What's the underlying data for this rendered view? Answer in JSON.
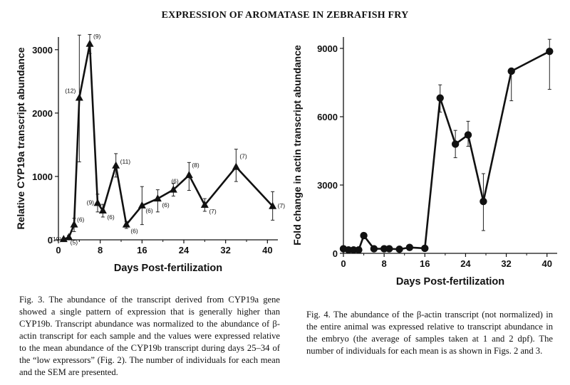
{
  "page": {
    "title": "EXPRESSION OF AROMATASE IN ZEBRAFISH FRY"
  },
  "captions": {
    "fig3": {
      "label": "Fig. 3.",
      "text": "The abundance of the transcript derived from CYP19a gene showed a single pattern of expression that is generally higher than CYP19b. Transcript abundance was normalized to the abundance of β-actin transcript for each sample and the values were expressed relative to the mean abundance of the CYP19b transcript during days 25–34 of the “low expressors” (Fig. 2). The number of individuals for each mean and the SEM are presented."
    },
    "fig4": {
      "label": "Fig. 4.",
      "text": "The abundance of the β-actin transcript (not normalized) in the entire animal was expressed relative to transcript abundance in the embryo (the average of samples taken at 1 and 2 dpf). The number of individuals for each mean is as shown in Figs. 2 and 3."
    }
  },
  "chart_data": [
    {
      "type": "line",
      "marker": "triangle",
      "xlabel": "Days Post-fertilization",
      "ylabel": "Relative CYP19a transcript abundance",
      "xlim": [
        0,
        42
      ],
      "ylim": [
        0,
        3200
      ],
      "xticks": [
        0,
        8,
        16,
        24,
        32,
        40
      ],
      "yticks": [
        0,
        1000,
        2000,
        3000
      ],
      "x": [
        1,
        2,
        3,
        4,
        6,
        7.5,
        8.5,
        11,
        13,
        16,
        19,
        22,
        25,
        28,
        34,
        41
      ],
      "y": [
        10,
        40,
        240,
        2240,
        3090,
        580,
        460,
        1170,
        240,
        540,
        650,
        790,
        1020,
        550,
        1150,
        530
      ],
      "err_low": [
        10,
        30,
        130,
        1230,
        2940,
        440,
        360,
        990,
        180,
        240,
        440,
        690,
        780,
        450,
        920,
        310
      ],
      "err_high": [
        30,
        70,
        340,
        3230,
        3240,
        720,
        560,
        1360,
        290,
        840,
        790,
        890,
        1220,
        650,
        1430,
        760
      ],
      "n_labels": [
        "(19)",
        "(5)",
        "(6)",
        "(12)",
        "(9)",
        "(9)",
        "(6)",
        "(11)",
        "(6)",
        "(6)",
        "(6)",
        "(6)",
        "(8)",
        "(7)",
        "(7)",
        "(7)"
      ]
    },
    {
      "type": "line",
      "marker": "circle",
      "xlabel": "Days Post-fertilization",
      "ylabel": "Fold change in actin transcript abundance",
      "xlim": [
        0,
        42
      ],
      "ylim": [
        0,
        9500
      ],
      "xticks": [
        0,
        8,
        16,
        24,
        32,
        40
      ],
      "yticks": [
        0,
        3000,
        6000,
        9000
      ],
      "x": [
        0,
        1,
        2,
        3,
        4,
        6,
        8,
        9,
        11,
        13,
        16,
        19,
        22,
        24.5,
        27.5,
        33,
        40.5
      ],
      "y": [
        200,
        150,
        150,
        150,
        780,
        200,
        200,
        200,
        180,
        260,
        220,
        6820,
        4800,
        5200,
        2280,
        8000,
        8870
      ],
      "err_low": [
        150,
        100,
        100,
        100,
        700,
        150,
        150,
        150,
        130,
        200,
        170,
        6200,
        4200,
        4700,
        1000,
        6700,
        7200
      ],
      "err_high": [
        250,
        200,
        200,
        200,
        860,
        250,
        250,
        250,
        230,
        320,
        270,
        7400,
        5400,
        5800,
        3500,
        8100,
        9400
      ]
    }
  ]
}
